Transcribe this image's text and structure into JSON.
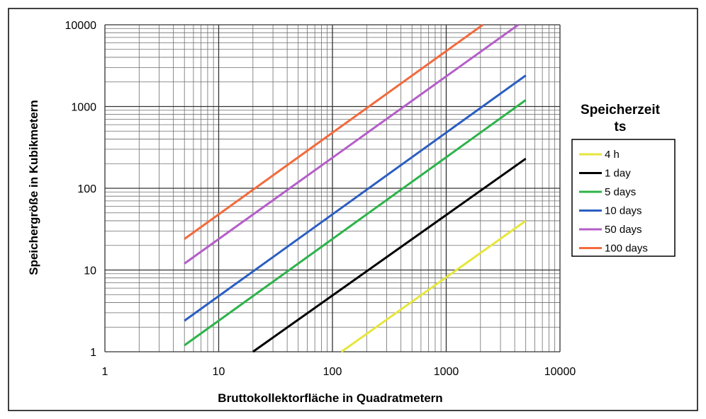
{
  "chart_data": {
    "type": "line",
    "title": "",
    "xlabel": "Bruttokollektorfläche in Quadratmetern",
    "ylabel": "Speichergröße in Kubikmetern",
    "xscale": "log",
    "yscale": "log",
    "xlim": [
      1,
      10000
    ],
    "ylim": [
      1,
      10000
    ],
    "xticks": [
      "1",
      "10",
      "100",
      "1000",
      "10000"
    ],
    "yticks": [
      "1",
      "10",
      "100",
      "1000",
      "10000"
    ],
    "grid": true,
    "legend": {
      "title_line1": "Speicherzeit",
      "title_line2": "ts",
      "placement": "right"
    },
    "series": [
      {
        "name": "4 h",
        "color": "#e6e63c",
        "x": [
          120,
          5000
        ],
        "y": [
          1,
          40
        ]
      },
      {
        "name": "1 day",
        "color": "#000000",
        "x": [
          20,
          5000
        ],
        "y": [
          1,
          230
        ]
      },
      {
        "name": "5 days",
        "color": "#2db34a",
        "x": [
          5,
          5000
        ],
        "y": [
          1.2,
          1200
        ]
      },
      {
        "name": "10 days",
        "color": "#2a5ec1",
        "x": [
          5,
          5000
        ],
        "y": [
          2.4,
          2400
        ]
      },
      {
        "name": "50 days",
        "color": "#b45ec8",
        "x": [
          5,
          4300
        ],
        "y": [
          12,
          10000
        ]
      },
      {
        "name": "100 days",
        "color": "#f26a3c",
        "x": [
          5,
          2100
        ],
        "y": [
          24,
          10000
        ]
      }
    ]
  }
}
